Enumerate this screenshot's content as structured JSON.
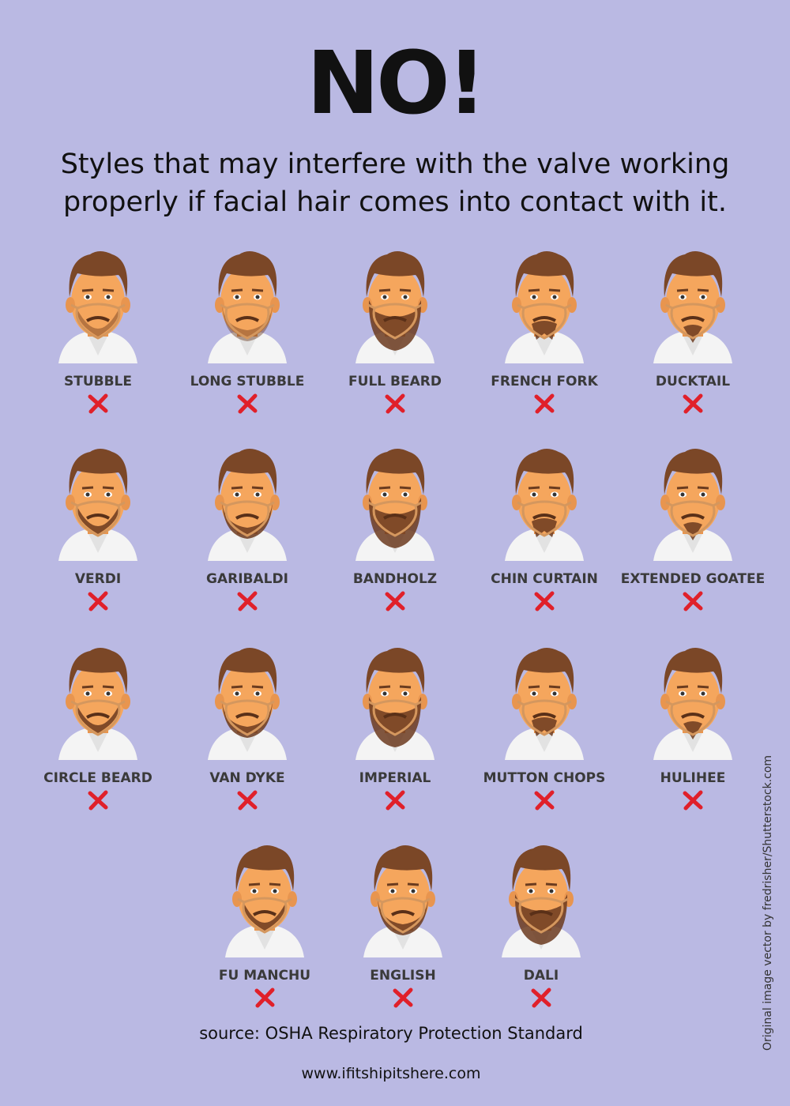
{
  "title": "NO!",
  "subtitle": [
    "Styles that may interfere with the valve working",
    "properly if facial hair comes into contact with it."
  ],
  "styles": [
    "STUBBLE",
    "LONG STUBBLE",
    "FULL BEARD",
    "FRENCH FORK",
    "DUCKTAIL",
    "VERDI",
    "GARIBALDI",
    "BANDHOLZ",
    "CHIN CURTAIN",
    "EXTENDED GOATEE",
    "CIRCLE BEARD",
    "VAN DYKE",
    "IMPERIAL",
    "MUTTON CHOPS",
    "HULIHEE",
    "FU MANCHU",
    "ENGLISH",
    "DALI"
  ],
  "source": "source: OSHA Respiratory Protection Standard",
  "website": "www.ifitshipitshere.com",
  "credit": "Original image vector by fredrisher/Shutterstock.com"
}
